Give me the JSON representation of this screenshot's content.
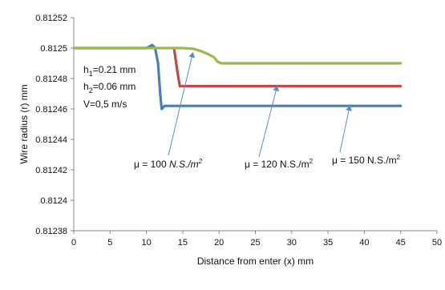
{
  "chart_data": {
    "type": "line",
    "title": "",
    "xlabel": "Distance from enter  (x) mm",
    "ylabel": "Wire  radius   (r) mm",
    "xlim": [
      0,
      50
    ],
    "ylim": [
      0.81238,
      0.81252
    ],
    "x_ticks": [
      "0",
      "5",
      "10",
      "15",
      "20",
      "25",
      "30",
      "35",
      "40",
      "45",
      "50"
    ],
    "y_ticks": [
      "0.81238",
      "0.8124",
      "0.81242",
      "0.81244",
      "0.81246",
      "0.81248",
      "0.8125",
      "0.81252"
    ],
    "grid": false,
    "series": [
      {
        "name": "μ = 150 N.S./m²",
        "color": "#4a7ebb",
        "points": [
          [
            0,
            0.8125
          ],
          [
            10,
            0.8125
          ],
          [
            10.8,
            0.812502
          ],
          [
            11.2,
            0.8125
          ],
          [
            11.6,
            0.81249
          ],
          [
            11.9,
            0.81247
          ],
          [
            12.1,
            0.81246
          ],
          [
            12.5,
            0.812462
          ],
          [
            20,
            0.812462
          ],
          [
            45,
            0.812462
          ]
        ]
      },
      {
        "name": "μ = 120 N.S./m²",
        "color": "#be4b48",
        "points": [
          [
            13.8,
            0.8125
          ],
          [
            14.1,
            0.81249
          ],
          [
            14.35,
            0.812482
          ],
          [
            14.6,
            0.812475
          ],
          [
            15,
            0.812475
          ],
          [
            30,
            0.812475
          ],
          [
            45,
            0.812475
          ]
        ]
      },
      {
        "name": "μ = 100 N.S./m²",
        "color": "#98b954",
        "points": [
          [
            0,
            0.8125
          ],
          [
            15,
            0.8125
          ],
          [
            16.5,
            0.8124995
          ],
          [
            17.5,
            0.812498
          ],
          [
            18.5,
            0.812496
          ],
          [
            19.3,
            0.812494
          ],
          [
            19.8,
            0.812491
          ],
          [
            20.3,
            0.81249
          ],
          [
            30,
            0.81249
          ],
          [
            45,
            0.81249
          ]
        ]
      }
    ],
    "parameters": {
      "h1": {
        "symbol": "h",
        "sub": "1",
        "value": "=0.21 mm"
      },
      "h2": {
        "symbol": "h",
        "sub": "2",
        "value": "=0.06 mm"
      },
      "v": "V=0,5 m/s"
    },
    "annotations": [
      {
        "label_main": "μ = 100 ",
        "label_unit": "N.S./m",
        "label_sup": "2",
        "italic": true,
        "arrow_to": [
          16.4,
          0.812497
        ]
      },
      {
        "label_main": "μ = 120 N.S./m",
        "label_unit": "",
        "label_sup": "2",
        "italic": false,
        "arrow_to": [
          28,
          0.812475
        ]
      },
      {
        "label_main": "μ = 150 N.S./m",
        "label_unit": "",
        "label_sup": "2",
        "italic": false,
        "arrow_to": [
          38,
          0.812462
        ]
      }
    ]
  }
}
